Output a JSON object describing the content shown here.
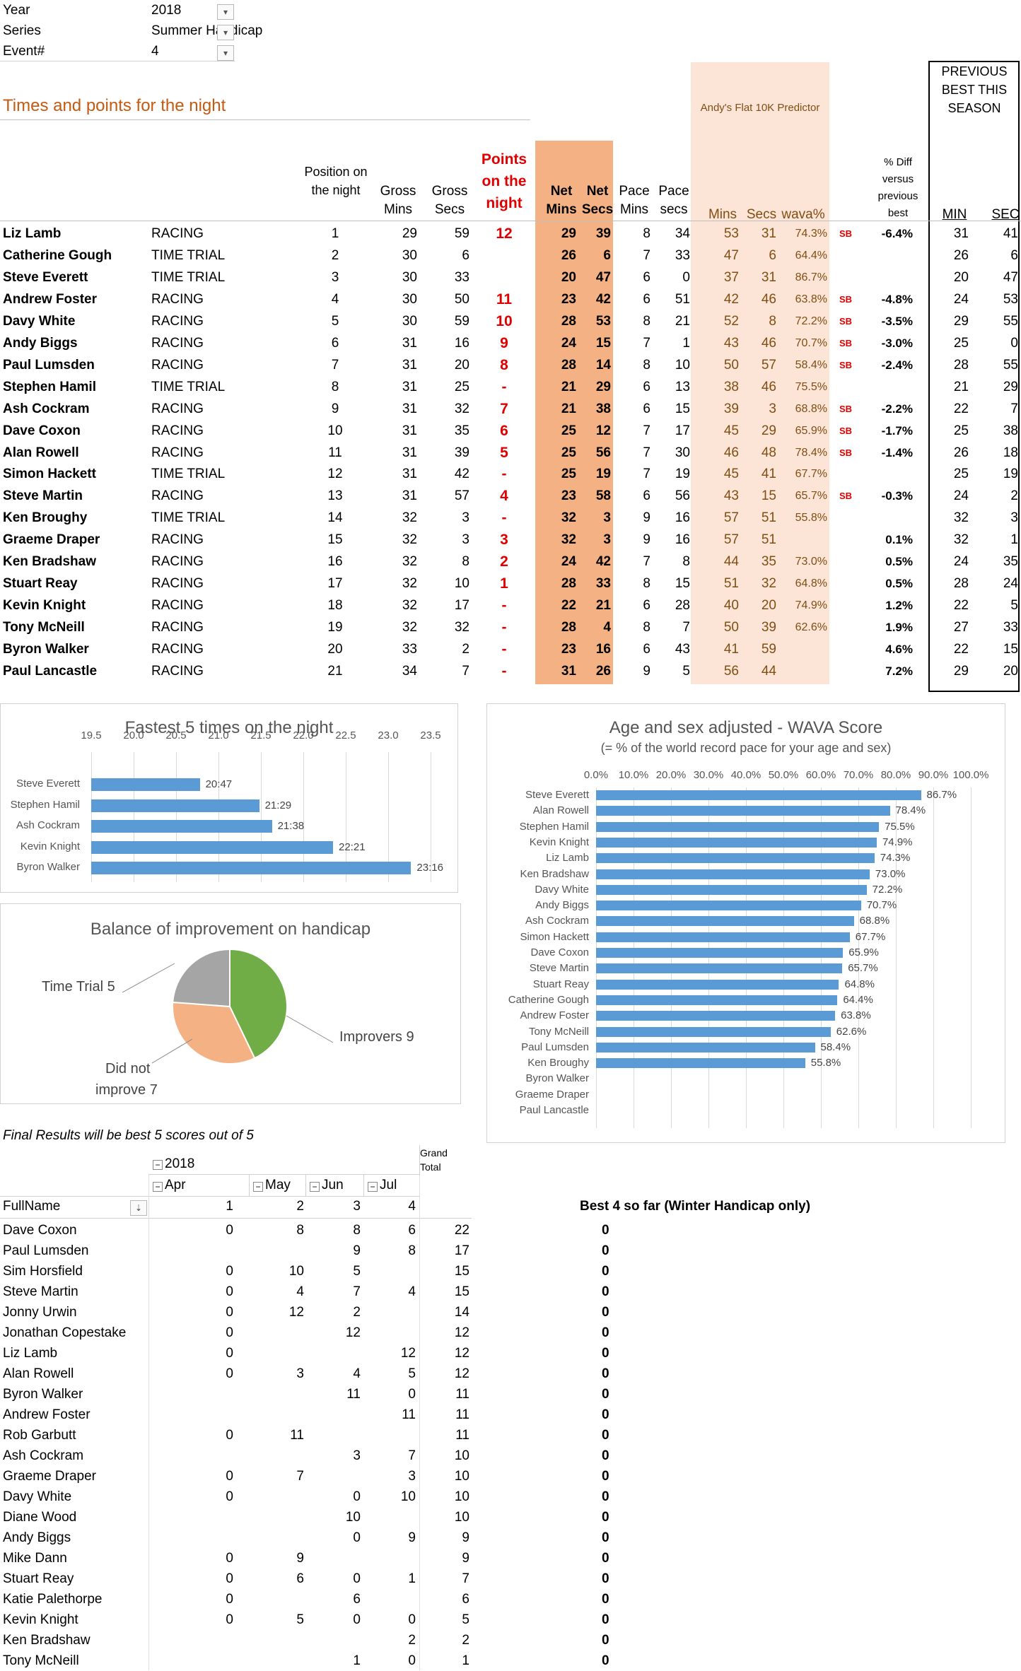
{
  "filters": [
    {
      "label": "Year",
      "value": "2018"
    },
    {
      "label": "Series",
      "value": "Summer Handicap"
    },
    {
      "label": "Event#",
      "value": "4"
    }
  ],
  "section_title": "Times and points for the night",
  "predictor_label": "Andy's Flat 10K Predictor",
  "prev_best_title": "PREVIOUS BEST THIS SEASON",
  "headers": {
    "position": "Position on the night",
    "gross_mins": "Gross Mins",
    "gross_secs": "Gross Secs",
    "points": "Points on the night",
    "net_mins": "Net Mins",
    "net_secs": "Net Secs",
    "pace_mins": "Pace Mins",
    "pace_secs": "Pace secs",
    "pred_mins": "Mins",
    "pred_secs": "Secs",
    "wava": "wava%",
    "diff": "% Diff versus previous best",
    "min": "MIN",
    "sec": "SEC"
  },
  "rows": [
    {
      "name": "Liz Lamb",
      "type": "RACING",
      "pos": "1",
      "gm": "29",
      "gs": "59",
      "pts": "12",
      "nm": "29",
      "ns": "39",
      "pm": "8",
      "ps": "34",
      "prm": "53",
      "prs": "31",
      "wava": "74.3%",
      "sb": "SB",
      "diff": "-6.4%",
      "min": "31",
      "sec": "41"
    },
    {
      "name": "Catherine Gough",
      "type": "TIME TRIAL",
      "pos": "2",
      "gm": "30",
      "gs": "6",
      "pts": "",
      "nm": "26",
      "ns": "6",
      "pm": "7",
      "ps": "33",
      "prm": "47",
      "prs": "6",
      "wava": "64.4%",
      "sb": "",
      "diff": "",
      "min": "26",
      "sec": "6"
    },
    {
      "name": "Steve Everett",
      "type": "TIME TRIAL",
      "pos": "3",
      "gm": "30",
      "gs": "33",
      "pts": "",
      "nm": "20",
      "ns": "47",
      "pm": "6",
      "ps": "0",
      "prm": "37",
      "prs": "31",
      "wava": "86.7%",
      "sb": "",
      "diff": "",
      "min": "20",
      "sec": "47"
    },
    {
      "name": "Andrew Foster",
      "type": "RACING",
      "pos": "4",
      "gm": "30",
      "gs": "50",
      "pts": "11",
      "nm": "23",
      "ns": "42",
      "pm": "6",
      "ps": "51",
      "prm": "42",
      "prs": "46",
      "wava": "63.8%",
      "sb": "SB",
      "diff": "-4.8%",
      "min": "24",
      "sec": "53"
    },
    {
      "name": "Davy White",
      "type": "RACING",
      "pos": "5",
      "gm": "30",
      "gs": "59",
      "pts": "10",
      "nm": "28",
      "ns": "53",
      "pm": "8",
      "ps": "21",
      "prm": "52",
      "prs": "8",
      "wava": "72.2%",
      "sb": "SB",
      "diff": "-3.5%",
      "min": "29",
      "sec": "55"
    },
    {
      "name": "Andy Biggs",
      "type": "RACING",
      "pos": "6",
      "gm": "31",
      "gs": "16",
      "pts": "9",
      "nm": "24",
      "ns": "15",
      "pm": "7",
      "ps": "1",
      "prm": "43",
      "prs": "46",
      "wava": "70.7%",
      "sb": "SB",
      "diff": "-3.0%",
      "min": "25",
      "sec": "0"
    },
    {
      "name": "Paul Lumsden",
      "type": "RACING",
      "pos": "7",
      "gm": "31",
      "gs": "20",
      "pts": "8",
      "nm": "28",
      "ns": "14",
      "pm": "8",
      "ps": "10",
      "prm": "50",
      "prs": "57",
      "wava": "58.4%",
      "sb": "SB",
      "diff": "-2.4%",
      "min": "28",
      "sec": "55"
    },
    {
      "name": "Stephen Hamil",
      "type": "TIME TRIAL",
      "pos": "8",
      "gm": "31",
      "gs": "25",
      "pts": "-",
      "nm": "21",
      "ns": "29",
      "pm": "6",
      "ps": "13",
      "prm": "38",
      "prs": "46",
      "wava": "75.5%",
      "sb": "",
      "diff": "",
      "min": "21",
      "sec": "29"
    },
    {
      "name": "Ash Cockram",
      "type": "RACING",
      "pos": "9",
      "gm": "31",
      "gs": "32",
      "pts": "7",
      "nm": "21",
      "ns": "38",
      "pm": "6",
      "ps": "15",
      "prm": "39",
      "prs": "3",
      "wava": "68.8%",
      "sb": "SB",
      "diff": "-2.2%",
      "min": "22",
      "sec": "7"
    },
    {
      "name": "Dave Coxon",
      "type": "RACING",
      "pos": "10",
      "gm": "31",
      "gs": "35",
      "pts": "6",
      "nm": "25",
      "ns": "12",
      "pm": "7",
      "ps": "17",
      "prm": "45",
      "prs": "29",
      "wava": "65.9%",
      "sb": "SB",
      "diff": "-1.7%",
      "min": "25",
      "sec": "38"
    },
    {
      "name": "Alan Rowell",
      "type": "RACING",
      "pos": "11",
      "gm": "31",
      "gs": "39",
      "pts": "5",
      "nm": "25",
      "ns": "56",
      "pm": "7",
      "ps": "30",
      "prm": "46",
      "prs": "48",
      "wava": "78.4%",
      "sb": "SB",
      "diff": "-1.4%",
      "min": "26",
      "sec": "18"
    },
    {
      "name": "Simon Hackett",
      "type": "TIME TRIAL",
      "pos": "12",
      "gm": "31",
      "gs": "42",
      "pts": "-",
      "nm": "25",
      "ns": "19",
      "pm": "7",
      "ps": "19",
      "prm": "45",
      "prs": "41",
      "wava": "67.7%",
      "sb": "",
      "diff": "",
      "min": "25",
      "sec": "19"
    },
    {
      "name": "Steve Martin",
      "type": "RACING",
      "pos": "13",
      "gm": "31",
      "gs": "57",
      "pts": "4",
      "nm": "23",
      "ns": "58",
      "pm": "6",
      "ps": "56",
      "prm": "43",
      "prs": "15",
      "wava": "65.7%",
      "sb": "SB",
      "diff": "-0.3%",
      "min": "24",
      "sec": "2"
    },
    {
      "name": "Ken Broughy",
      "type": "TIME TRIAL",
      "pos": "14",
      "gm": "32",
      "gs": "3",
      "pts": "-",
      "nm": "32",
      "ns": "3",
      "pm": "9",
      "ps": "16",
      "prm": "57",
      "prs": "51",
      "wava": "55.8%",
      "sb": "",
      "diff": "",
      "min": "32",
      "sec": "3"
    },
    {
      "name": "Graeme Draper",
      "type": "RACING",
      "pos": "15",
      "gm": "32",
      "gs": "3",
      "pts": "3",
      "nm": "32",
      "ns": "3",
      "pm": "9",
      "ps": "16",
      "prm": "57",
      "prs": "51",
      "wava": "",
      "sb": "",
      "diff": "0.1%",
      "min": "32",
      "sec": "1"
    },
    {
      "name": "Ken Bradshaw",
      "type": "RACING",
      "pos": "16",
      "gm": "32",
      "gs": "8",
      "pts": "2",
      "nm": "24",
      "ns": "42",
      "pm": "7",
      "ps": "8",
      "prm": "44",
      "prs": "35",
      "wava": "73.0%",
      "sb": "",
      "diff": "0.5%",
      "min": "24",
      "sec": "35"
    },
    {
      "name": "Stuart Reay",
      "type": "RACING",
      "pos": "17",
      "gm": "32",
      "gs": "10",
      "pts": "1",
      "nm": "28",
      "ns": "33",
      "pm": "8",
      "ps": "15",
      "prm": "51",
      "prs": "32",
      "wava": "64.8%",
      "sb": "",
      "diff": "0.5%",
      "min": "28",
      "sec": "24"
    },
    {
      "name": "Kevin Knight",
      "type": "RACING",
      "pos": "18",
      "gm": "32",
      "gs": "17",
      "pts": "-",
      "nm": "22",
      "ns": "21",
      "pm": "6",
      "ps": "28",
      "prm": "40",
      "prs": "20",
      "wava": "74.9%",
      "sb": "",
      "diff": "1.2%",
      "min": "22",
      "sec": "5"
    },
    {
      "name": "Tony McNeill",
      "type": "RACING",
      "pos": "19",
      "gm": "32",
      "gs": "32",
      "pts": "-",
      "nm": "28",
      "ns": "4",
      "pm": "8",
      "ps": "7",
      "prm": "50",
      "prs": "39",
      "wava": "62.6%",
      "sb": "",
      "diff": "1.9%",
      "min": "27",
      "sec": "33"
    },
    {
      "name": "Byron Walker",
      "type": "RACING",
      "pos": "20",
      "gm": "33",
      "gs": "2",
      "pts": "-",
      "nm": "23",
      "ns": "16",
      "pm": "6",
      "ps": "43",
      "prm": "41",
      "prs": "59",
      "wava": "",
      "sb": "",
      "diff": "4.6%",
      "min": "22",
      "sec": "15"
    },
    {
      "name": "Paul Lancastle",
      "type": "RACING",
      "pos": "21",
      "gm": "34",
      "gs": "7",
      "pts": "-",
      "nm": "31",
      "ns": "26",
      "pm": "9",
      "ps": "5",
      "prm": "56",
      "prs": "44",
      "wava": "",
      "sb": "",
      "diff": "7.2%",
      "min": "29",
      "sec": "20"
    }
  ],
  "fastest_chart": {
    "title": "Fastest 5 times on the night",
    "ticks": [
      "19.5",
      "20.0",
      "20.5",
      "21.0",
      "21.5",
      "22.0",
      "22.5",
      "23.0",
      "23.5"
    ],
    "tick_values": [
      19.5,
      20.0,
      20.5,
      21.0,
      21.5,
      22.0,
      22.5,
      23.0,
      23.5
    ],
    "names": [
      "Steve Everett",
      "Stephen Hamil",
      "Ash Cockram",
      "Kevin Knight",
      "Byron Walker"
    ],
    "values": [
      20.78,
      21.48,
      21.63,
      22.35,
      23.27
    ],
    "labels": [
      "20:47",
      "21:29",
      "21:38",
      "22:21",
      "23:16"
    ],
    "xlim": [
      19.5,
      23.5
    ]
  },
  "wava_chart": {
    "title": "Age and sex adjusted - WAVA Score",
    "subtitle": "(= % of the world record pace for your age and sex)",
    "ticks": [
      "0.0%",
      "10.0%",
      "20.0%",
      "30.0%",
      "40.0%",
      "50.0%",
      "60.0%",
      "70.0%",
      "80.0%",
      "90.0%",
      "100.0%"
    ],
    "names": [
      "Steve Everett",
      "Alan Rowell",
      "Stephen Hamil",
      "Kevin Knight",
      "Liz Lamb",
      "Ken Bradshaw",
      "Davy White",
      "Andy Biggs",
      "Ash Cockram",
      "Simon Hackett",
      "Dave Coxon",
      "Steve Martin",
      "Stuart Reay",
      "Catherine Gough",
      "Andrew Foster",
      "Tony McNeill",
      "Paul Lumsden",
      "Ken Broughy",
      "Byron Walker",
      "Graeme Draper",
      "Paul Lancastle"
    ],
    "values": [
      86.7,
      78.4,
      75.5,
      74.9,
      74.3,
      73.0,
      72.2,
      70.7,
      68.8,
      67.7,
      65.9,
      65.7,
      64.8,
      64.4,
      63.8,
      62.6,
      58.4,
      55.8,
      null,
      null,
      null
    ],
    "labels": [
      "86.7%",
      "78.4%",
      "75.5%",
      "74.9%",
      "74.3%",
      "73.0%",
      "72.2%",
      "70.7%",
      "68.8%",
      "67.7%",
      "65.9%",
      "65.7%",
      "64.8%",
      "64.4%",
      "63.8%",
      "62.6%",
      "58.4%",
      "55.8%",
      "",
      "",
      ""
    ],
    "xlim": [
      0,
      100
    ]
  },
  "pie_chart": {
    "title": "Balance of improvement on handicap",
    "slices": [
      {
        "label": "Improvers 9",
        "value": 9,
        "color": "#70ad47"
      },
      {
        "label": "Did not improve 7",
        "value": 7,
        "color": "#f4b183"
      },
      {
        "label": "Time Trial 5",
        "value": 5,
        "color": "#a5a5a5"
      }
    ],
    "label_lines": {
      "improvers": "Improvers 9",
      "did_not_1": "Did not",
      "did_not_2": "improve 7",
      "time_trial": "Time Trial 5"
    }
  },
  "final_note": "Final Results will be best 5 scores out of 5",
  "pivot": {
    "grand_total_header": "Grand Total",
    "year": "2018",
    "months": [
      "Apr",
      "May",
      "Jun",
      "Jul"
    ],
    "fullname_header": "FullName",
    "event_nums": [
      "1",
      "2",
      "3",
      "4"
    ],
    "best4_header": "Best 4 so far (Winter Handicap only)",
    "rows": [
      {
        "name": "Dave Coxon",
        "v": [
          "0",
          "8",
          "8",
          "6"
        ],
        "total": "22",
        "best": "0"
      },
      {
        "name": "Paul Lumsden",
        "v": [
          "",
          "",
          "9",
          "8"
        ],
        "total": "17",
        "best": "0"
      },
      {
        "name": "Sim Horsfield",
        "v": [
          "0",
          "10",
          "5",
          ""
        ],
        "total": "15",
        "best": "0"
      },
      {
        "name": "Steve Martin",
        "v": [
          "0",
          "4",
          "7",
          "4"
        ],
        "total": "15",
        "best": "0"
      },
      {
        "name": "Jonny Urwin",
        "v": [
          "0",
          "12",
          "2",
          ""
        ],
        "total": "14",
        "best": "0"
      },
      {
        "name": "Jonathan Copestake",
        "v": [
          "0",
          "",
          "12",
          ""
        ],
        "total": "12",
        "best": "0"
      },
      {
        "name": "Liz Lamb",
        "v": [
          "0",
          "",
          "",
          "12"
        ],
        "total": "12",
        "best": "0"
      },
      {
        "name": "Alan Rowell",
        "v": [
          "0",
          "3",
          "4",
          "5"
        ],
        "total": "12",
        "best": "0"
      },
      {
        "name": "Byron Walker",
        "v": [
          "",
          "",
          "11",
          "0"
        ],
        "total": "11",
        "best": "0"
      },
      {
        "name": "Andrew Foster",
        "v": [
          "",
          "",
          "",
          "11"
        ],
        "total": "11",
        "best": "0"
      },
      {
        "name": "Rob Garbutt",
        "v": [
          "0",
          "11",
          "",
          ""
        ],
        "total": "11",
        "best": "0"
      },
      {
        "name": "Ash Cockram",
        "v": [
          "",
          "",
          "3",
          "7"
        ],
        "total": "10",
        "best": "0"
      },
      {
        "name": "Graeme Draper",
        "v": [
          "0",
          "7",
          "",
          "3"
        ],
        "total": "10",
        "best": "0"
      },
      {
        "name": "Davy White",
        "v": [
          "0",
          "",
          "0",
          "10"
        ],
        "total": "10",
        "best": "0"
      },
      {
        "name": "Diane Wood",
        "v": [
          "",
          "",
          "10",
          ""
        ],
        "total": "10",
        "best": "0"
      },
      {
        "name": "Andy Biggs",
        "v": [
          "",
          "",
          "0",
          "9"
        ],
        "total": "9",
        "best": "0"
      },
      {
        "name": "Mike Dann",
        "v": [
          "0",
          "9",
          "",
          ""
        ],
        "total": "9",
        "best": "0"
      },
      {
        "name": "Stuart Reay",
        "v": [
          "0",
          "6",
          "0",
          "1"
        ],
        "total": "7",
        "best": "0"
      },
      {
        "name": "Katie Palethorpe",
        "v": [
          "0",
          "",
          "6",
          ""
        ],
        "total": "6",
        "best": "0"
      },
      {
        "name": "Kevin Knight",
        "v": [
          "0",
          "5",
          "0",
          "0"
        ],
        "total": "5",
        "best": "0"
      },
      {
        "name": "Ken Bradshaw",
        "v": [
          "",
          "",
          "",
          "2"
        ],
        "total": "2",
        "best": "0"
      },
      {
        "name": "Tony McNeill",
        "v": [
          "",
          "",
          "1",
          "0"
        ],
        "total": "1",
        "best": "0"
      }
    ]
  },
  "colors": {
    "orange_title": "#c55a11",
    "net_fill": "#f4b183",
    "pred_fill": "#fce4d6",
    "red": "#e00000",
    "bar_blue": "#5b9bd5",
    "pred_text": "#7f4f13"
  }
}
